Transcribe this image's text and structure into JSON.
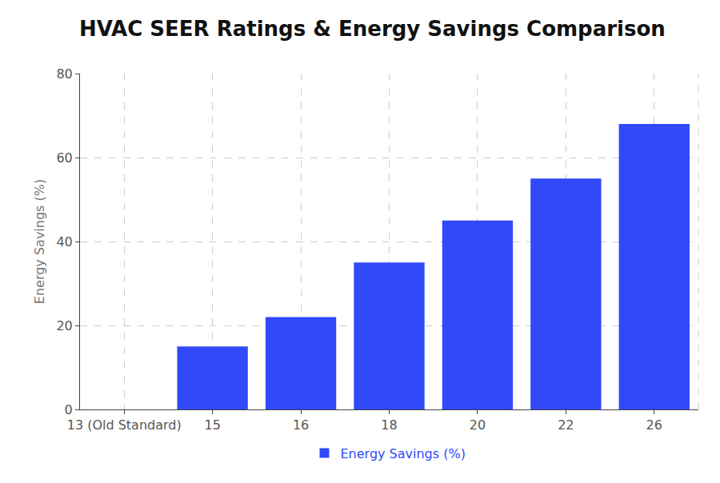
{
  "chart_data": {
    "type": "bar",
    "title": "HVAC SEER Ratings & Energy Savings Comparison",
    "y_label": "Energy Savings (%)",
    "categories": [
      "13 (Old Standard)",
      "15",
      "16",
      "18",
      "20",
      "22",
      "26"
    ],
    "series": [
      {
        "name": "Energy Savings (%)",
        "color": "#3049f9",
        "values": [
          0,
          15,
          22,
          35,
          45,
          55,
          68
        ]
      }
    ],
    "ylim": [
      0,
      80
    ],
    "yticks": [
      0,
      20,
      40,
      60,
      80
    ],
    "grid": true,
    "legend": "bottom"
  }
}
